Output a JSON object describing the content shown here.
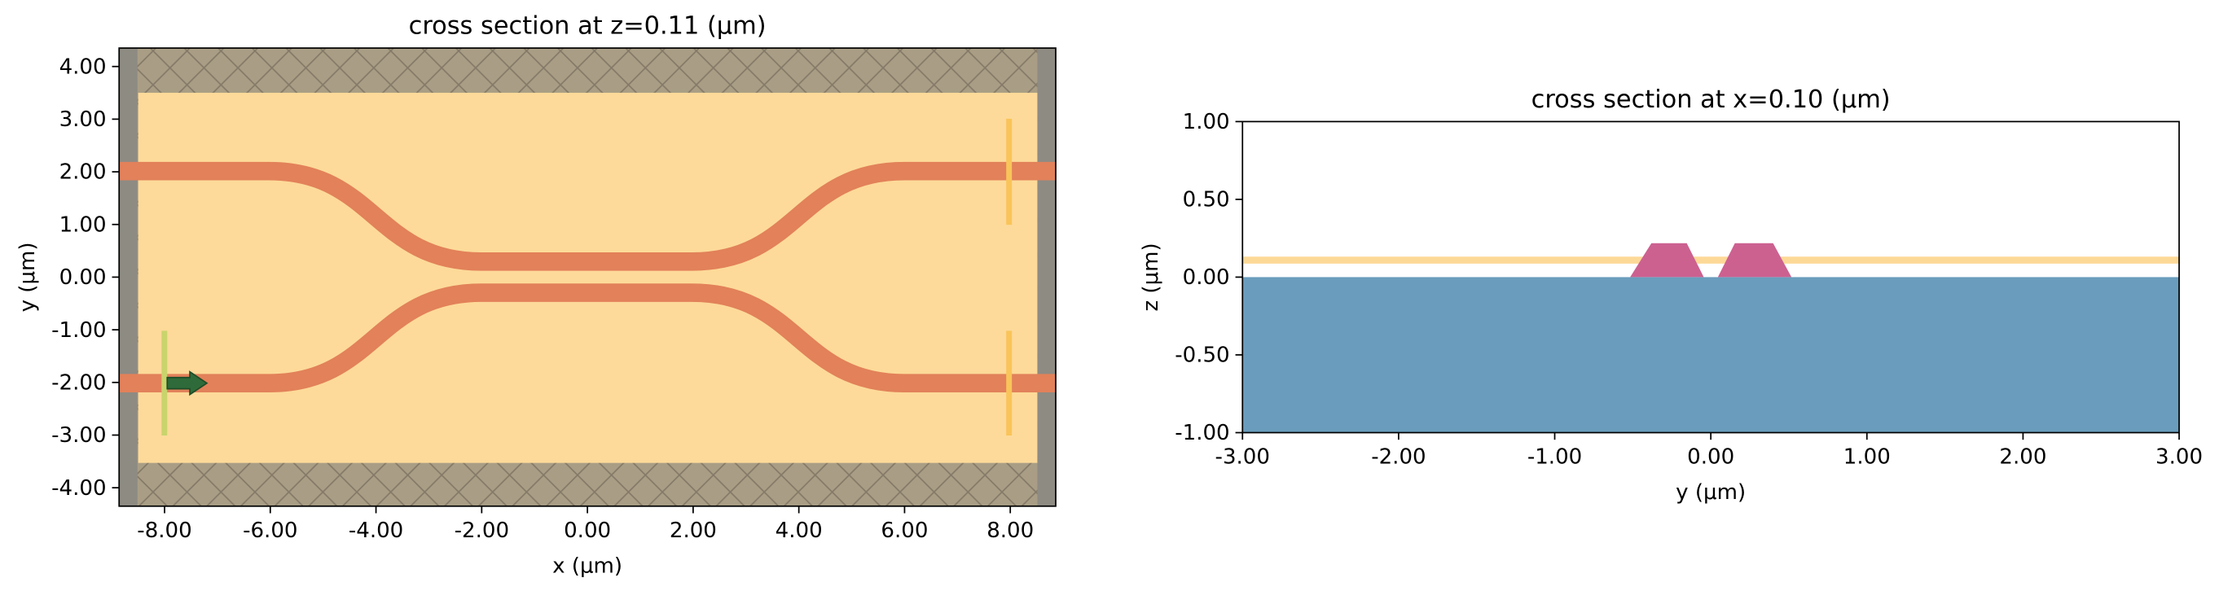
{
  "chart_data": [
    {
      "type": "structure",
      "title": "cross section at z=0.11 (μm)",
      "x_label": "x (μm)",
      "y_label": "y (μm)",
      "xlim": [
        -8.86,
        8.86
      ],
      "ylim": [
        -4.35,
        4.35
      ],
      "xticks": [
        {
          "value": -8,
          "label": "-8.00"
        },
        {
          "value": -6,
          "label": "-6.00"
        },
        {
          "value": -4,
          "label": "-4.00"
        },
        {
          "value": -2,
          "label": "-2.00"
        },
        {
          "value": 0,
          "label": "0.00"
        },
        {
          "value": 2,
          "label": "2.00"
        },
        {
          "value": 4,
          "label": "4.00"
        },
        {
          "value": 6,
          "label": "6.00"
        },
        {
          "value": 8,
          "label": "8.00"
        }
      ],
      "yticks": [
        {
          "value": 4,
          "label": "4.00"
        },
        {
          "value": 3,
          "label": "3.00"
        },
        {
          "value": 2,
          "label": "2.00"
        },
        {
          "value": 1,
          "label": "1.00"
        },
        {
          "value": 0,
          "label": "0.00"
        },
        {
          "value": -1,
          "label": "-1.00"
        },
        {
          "value": -2,
          "label": "-2.00"
        },
        {
          "value": -3,
          "label": "-3.00"
        },
        {
          "value": -4,
          "label": "-4.00"
        }
      ]
    },
    {
      "type": "structure",
      "title": "cross section at x=0.10 (μm)",
      "x_label": "y (μm)",
      "y_label": "z (μm)",
      "xlim": [
        -3,
        3
      ],
      "ylim": [
        -1,
        1
      ],
      "xticks": [
        {
          "value": -3,
          "label": "-3.00"
        },
        {
          "value": -2,
          "label": "-2.00"
        },
        {
          "value": -1,
          "label": "-1.00"
        },
        {
          "value": 0,
          "label": "0.00"
        },
        {
          "value": 1,
          "label": "1.00"
        },
        {
          "value": 2,
          "label": "2.00"
        },
        {
          "value": 3,
          "label": "3.00"
        }
      ],
      "yticks": [
        {
          "value": 1,
          "label": "1.00"
        },
        {
          "value": 0.5,
          "label": "0.50"
        },
        {
          "value": 0,
          "label": "0.00"
        },
        {
          "value": -0.5,
          "label": "-0.50"
        },
        {
          "value": -1,
          "label": "-1.00"
        }
      ]
    }
  ]
}
